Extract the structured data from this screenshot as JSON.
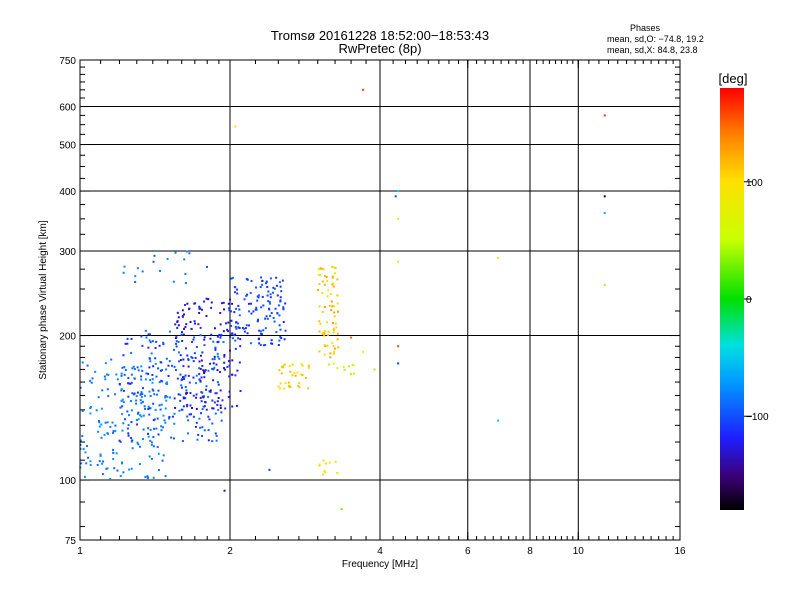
{
  "header": {
    "title_line1": "Tromsø 20161228 18:52:00−18:53:43",
    "title_line2": "RwPretec (8p)"
  },
  "stats": {
    "heading": "Phases",
    "line_o": "mean, sd,O: −74.8, 19.2",
    "line_x": "mean, sd,X:  84.8, 23.8"
  },
  "colorbar": {
    "label": "[deg]",
    "range": [
      -180,
      180
    ],
    "ticks": [
      {
        "value": 100,
        "label": "100"
      },
      {
        "value": 0,
        "label": "0"
      },
      {
        "value": -100,
        "label": "−100"
      }
    ]
  },
  "chart_data": {
    "type": "scatter",
    "title": "Tromsø 20161228 18:52:00−18:53:43",
    "subtitle": "RwPretec (8p)",
    "xlabel": "Frequency [MHz]",
    "ylabel": "Stationary phase Virtual Height [km]",
    "xscale": "log",
    "yscale": "log",
    "xlim": [
      1,
      16
    ],
    "ylim": [
      75,
      750
    ],
    "x_ticks": [
      {
        "value": 1,
        "label": "1"
      },
      {
        "value": 2,
        "label": "2"
      },
      {
        "value": 4,
        "label": "4"
      },
      {
        "value": 6,
        "label": "6"
      },
      {
        "value": 8,
        "label": "8"
      },
      {
        "value": 10,
        "label": "10"
      },
      {
        "value": 16,
        "label": "16"
      }
    ],
    "y_ticks": [
      {
        "value": 75,
        "label": "75"
      },
      {
        "value": 100,
        "label": "100"
      },
      {
        "value": 200,
        "label": "200"
      },
      {
        "value": 300,
        "label": "300"
      },
      {
        "value": 400,
        "label": "400"
      },
      {
        "value": 500,
        "label": "500"
      },
      {
        "value": 600,
        "label": "600"
      },
      {
        "value": 750,
        "label": "750"
      }
    ],
    "x_gridlines": [
      2,
      4,
      6,
      8,
      10
    ],
    "y_gridlines": [
      100,
      200,
      300,
      400,
      500,
      600
    ],
    "color_by": "phase",
    "color_range": [
      -180,
      180
    ],
    "clusters": [
      {
        "x": [
          1.0,
          1.5
        ],
        "y": [
          100,
          180
        ],
        "phase": [
          -95,
          -70
        ],
        "count": 170
      },
      {
        "x": [
          1.2,
          1.95
        ],
        "y": [
          120,
          205
        ],
        "phase": [
          -120,
          -80
        ],
        "count": 230
      },
      {
        "x": [
          1.55,
          2.1
        ],
        "y": [
          140,
          240
        ],
        "phase": [
          -140,
          -110
        ],
        "count": 160
      },
      {
        "x": [
          2.0,
          2.6
        ],
        "y": [
          190,
          265
        ],
        "phase": [
          -120,
          -90
        ],
        "count": 130
      },
      {
        "x": [
          1.2,
          1.8
        ],
        "y": [
          255,
          300
        ],
        "phase": [
          -100,
          -75
        ],
        "count": 18
      },
      {
        "x": [
          2.5,
          2.9
        ],
        "y": [
          155,
          175
        ],
        "phase": [
          90,
          120
        ],
        "count": 34
      },
      {
        "x": [
          3.0,
          3.3
        ],
        "y": [
          180,
          280
        ],
        "phase": [
          85,
          130
        ],
        "count": 75
      },
      {
        "x": [
          3.1,
          3.6
        ],
        "y": [
          165,
          175
        ],
        "phase": [
          40,
          70
        ],
        "count": 10
      },
      {
        "x": [
          3.0,
          3.3
        ],
        "y": [
          102,
          110
        ],
        "phase": [
          80,
          110
        ],
        "count": 10
      }
    ],
    "points": [
      {
        "x": 3.7,
        "y": 650,
        "phase": 165
      },
      {
        "x": 2.05,
        "y": 545,
        "phase": 95
      },
      {
        "x": 4.35,
        "y": 400,
        "phase": -35
      },
      {
        "x": 4.3,
        "y": 390,
        "phase": -110
      },
      {
        "x": 4.35,
        "y": 350,
        "phase": 60
      },
      {
        "x": 4.35,
        "y": 285,
        "phase": 80
      },
      {
        "x": 4.35,
        "y": 190,
        "phase": 160
      },
      {
        "x": 4.35,
        "y": 175,
        "phase": -110
      },
      {
        "x": 6.9,
        "y": 290,
        "phase": 90
      },
      {
        "x": 6.9,
        "y": 133,
        "phase": -50
      },
      {
        "x": 11.3,
        "y": 575,
        "phase": 165
      },
      {
        "x": 11.3,
        "y": 390,
        "phase": -170
      },
      {
        "x": 11.3,
        "y": 360,
        "phase": -60
      },
      {
        "x": 11.3,
        "y": 255,
        "phase": 40
      },
      {
        "x": 3.35,
        "y": 87,
        "phase": 30
      },
      {
        "x": 1.95,
        "y": 95,
        "phase": -140
      },
      {
        "x": 2.4,
        "y": 105,
        "phase": -110
      },
      {
        "x": 3.5,
        "y": 198,
        "phase": 150
      },
      {
        "x": 3.9,
        "y": 170,
        "phase": 40
      },
      {
        "x": 3.7,
        "y": 185,
        "phase": 70
      }
    ]
  }
}
